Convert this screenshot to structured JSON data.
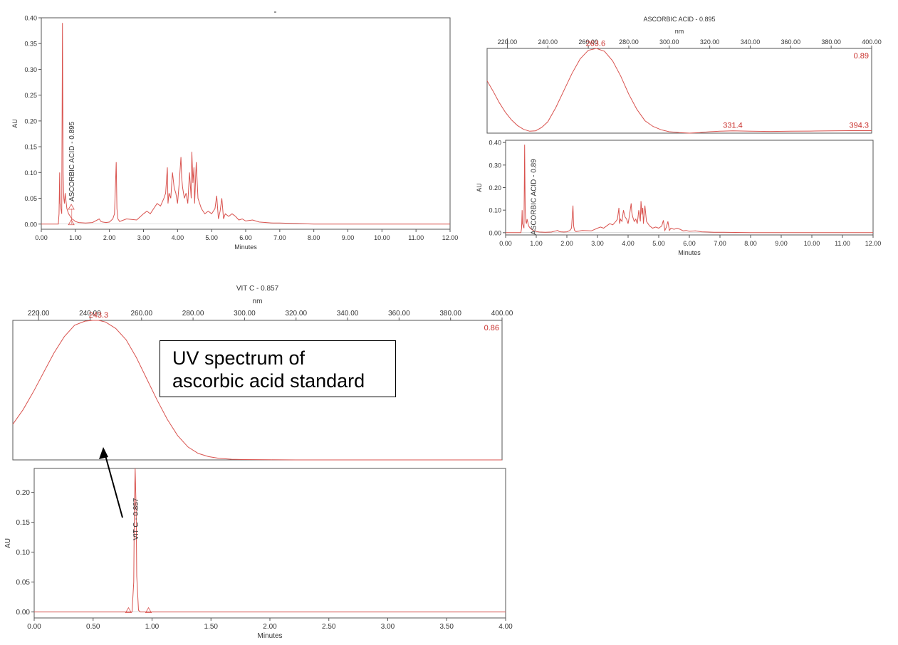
{
  "chart_data": [
    {
      "id": "chrom_top_left",
      "type": "line",
      "title": "",
      "xlabel": "Minutes",
      "ylabel": "AU",
      "xlim": [
        0,
        12
      ],
      "ylim": [
        -0.01,
        0.4
      ],
      "xticks": [
        "0.00",
        "1.00",
        "2.00",
        "3.00",
        "4.00",
        "5.00",
        "6.00",
        "7.00",
        "8.00",
        "9.00",
        "10.00",
        "11.00",
        "12.00"
      ],
      "yticks": [
        "0.00",
        "0.05",
        "0.10",
        "0.15",
        "0.20",
        "0.25",
        "0.30",
        "0.35",
        "0.40"
      ],
      "peak_label": "ASCORBIC ACID - 0.895",
      "series": [
        {
          "x": [
            0,
            0.5,
            0.52,
            0.54,
            0.55,
            0.6,
            0.62,
            0.64,
            0.66,
            0.68,
            0.7,
            0.75,
            0.8,
            0.85,
            0.9,
            0.95,
            1.0,
            1.1,
            1.3,
            1.5,
            1.7,
            1.75,
            1.8,
            1.9,
            2.0,
            2.1,
            2.15,
            2.2,
            2.22,
            2.25,
            2.3,
            2.5,
            2.8,
            3.0,
            3.1,
            3.2,
            3.3,
            3.4,
            3.5,
            3.6,
            3.65,
            3.7,
            3.72,
            3.75,
            3.8,
            3.85,
            3.9,
            3.95,
            4.0,
            4.05,
            4.1,
            4.12,
            4.15,
            4.2,
            4.25,
            4.3,
            4.35,
            4.4,
            4.42,
            4.45,
            4.48,
            4.5,
            4.55,
            4.6,
            4.7,
            4.8,
            4.9,
            5.0,
            5.1,
            5.15,
            5.2,
            5.25,
            5.3,
            5.35,
            5.4,
            5.5,
            5.6,
            5.7,
            5.8,
            5.9,
            6.0,
            6.2,
            6.4,
            6.6,
            6.8,
            7.0,
            7.5,
            8,
            9,
            10,
            11,
            12
          ],
          "y": [
            0,
            0,
            0.02,
            0.1,
            0.04,
            0.02,
            0.39,
            0.1,
            0.05,
            0.04,
            0.06,
            0.03,
            0.02,
            0.015,
            0.01,
            0.008,
            0.005,
            0.003,
            0.002,
            0.003,
            0.01,
            0.005,
            0.004,
            0.003,
            0.004,
            0.01,
            0.02,
            0.12,
            0.03,
            0.01,
            0.005,
            0.01,
            0.008,
            0.02,
            0.025,
            0.02,
            0.03,
            0.04,
            0.035,
            0.05,
            0.06,
            0.11,
            0.04,
            0.06,
            0.05,
            0.1,
            0.07,
            0.06,
            0.04,
            0.08,
            0.13,
            0.09,
            0.07,
            0.05,
            0.06,
            0.04,
            0.1,
            0.05,
            0.14,
            0.08,
            0.11,
            0.04,
            0.12,
            0.05,
            0.03,
            0.02,
            0.025,
            0.02,
            0.03,
            0.055,
            0.01,
            0.025,
            0.05,
            0.01,
            0.02,
            0.015,
            0.02,
            0.015,
            0.008,
            0.01,
            0.006,
            0.008,
            0.004,
            0.003,
            0.002,
            0.002,
            0.001,
            0,
            0,
            0,
            0,
            0
          ]
        }
      ],
      "markers": [
        {
          "x": 0.88,
          "y": 0.03
        },
        {
          "x": 0.88,
          "y": 0.0
        }
      ]
    },
    {
      "id": "spectrum_top_right",
      "type": "line",
      "title": "ASCORBIC ACID - 0.895",
      "xlabel": "nm",
      "xlim": [
        210,
        400
      ],
      "ylim": [
        0,
        0.89
      ],
      "xticks": [
        "220.00",
        "240.00",
        "260.00",
        "280.00",
        "300.00",
        "320.00",
        "340.00",
        "360.00",
        "380.00",
        "400.00"
      ],
      "max_label": "0.89",
      "peak_labels": [
        {
          "x": 263.6,
          "text": "263.6"
        },
        {
          "x": 331.4,
          "text": "331.4"
        },
        {
          "x": 394.3,
          "text": "394.3"
        }
      ],
      "series": [
        {
          "x": [
            210,
            213,
            216,
            219,
            222,
            225,
            228,
            231,
            234,
            237,
            240,
            244,
            248,
            252,
            256,
            260,
            264,
            268,
            272,
            276,
            280,
            284,
            288,
            292,
            296,
            300,
            305,
            310,
            315,
            320,
            325,
            331.4,
            340,
            350,
            360,
            370,
            380,
            390,
            394.3,
            400
          ],
          "y": [
            0.55,
            0.44,
            0.32,
            0.22,
            0.14,
            0.08,
            0.04,
            0.02,
            0.025,
            0.06,
            0.12,
            0.27,
            0.45,
            0.63,
            0.78,
            0.87,
            0.89,
            0.86,
            0.76,
            0.6,
            0.41,
            0.25,
            0.13,
            0.07,
            0.035,
            0.015,
            0.005,
            0.0,
            0.005,
            0.015,
            0.02,
            0.025,
            0.02,
            0.018,
            0.02,
            0.022,
            0.024,
            0.026,
            0.026,
            0.026
          ]
        }
      ]
    },
    {
      "id": "chrom_top_right",
      "type": "line",
      "xlabel": "Minutes",
      "ylabel": "AU",
      "xlim": [
        0,
        12
      ],
      "ylim": [
        -0.01,
        0.41
      ],
      "xticks": [
        "0.00",
        "1.00",
        "2.00",
        "3.00",
        "4.00",
        "5.00",
        "6.00",
        "7.00",
        "8.00",
        "9.00",
        "10.00",
        "11.00",
        "12.00"
      ],
      "yticks": [
        "0.00",
        "0.10",
        "0.20",
        "0.30",
        "0.40"
      ],
      "peak_label": "ASCORBIC ACID - 0.89",
      "series": [
        {
          "x": [
            0,
            0.5,
            0.52,
            0.54,
            0.55,
            0.6,
            0.62,
            0.64,
            0.66,
            0.68,
            0.7,
            0.75,
            0.8,
            0.85,
            0.9,
            0.95,
            1.0,
            1.1,
            1.3,
            1.5,
            1.7,
            1.75,
            1.8,
            1.9,
            2.0,
            2.1,
            2.15,
            2.2,
            2.22,
            2.25,
            2.3,
            2.5,
            2.8,
            3.0,
            3.1,
            3.2,
            3.3,
            3.4,
            3.5,
            3.6,
            3.65,
            3.7,
            3.72,
            3.75,
            3.8,
            3.85,
            3.9,
            3.95,
            4.0,
            4.05,
            4.1,
            4.12,
            4.15,
            4.2,
            4.25,
            4.3,
            4.35,
            4.4,
            4.42,
            4.45,
            4.48,
            4.5,
            4.55,
            4.6,
            4.7,
            4.8,
            4.9,
            5.0,
            5.1,
            5.15,
            5.2,
            5.25,
            5.3,
            5.35,
            5.4,
            5.5,
            5.6,
            5.7,
            5.8,
            5.9,
            6.0,
            6.2,
            6.4,
            6.6,
            6.8,
            7.0,
            7.5,
            8,
            9,
            10,
            11,
            12
          ],
          "y": [
            0,
            0,
            0.02,
            0.1,
            0.04,
            0.02,
            0.39,
            0.1,
            0.05,
            0.04,
            0.06,
            0.03,
            0.02,
            0.015,
            0.01,
            0.008,
            0.005,
            0.003,
            0.002,
            0.003,
            0.01,
            0.005,
            0.004,
            0.003,
            0.004,
            0.01,
            0.02,
            0.12,
            0.03,
            0.01,
            0.005,
            0.01,
            0.008,
            0.02,
            0.025,
            0.02,
            0.03,
            0.04,
            0.035,
            0.05,
            0.06,
            0.11,
            0.04,
            0.06,
            0.05,
            0.1,
            0.07,
            0.06,
            0.04,
            0.08,
            0.13,
            0.09,
            0.07,
            0.05,
            0.06,
            0.04,
            0.1,
            0.05,
            0.14,
            0.08,
            0.11,
            0.04,
            0.12,
            0.05,
            0.03,
            0.02,
            0.025,
            0.02,
            0.03,
            0.055,
            0.01,
            0.025,
            0.05,
            0.01,
            0.02,
            0.015,
            0.02,
            0.015,
            0.008,
            0.01,
            0.006,
            0.008,
            0.004,
            0.003,
            0.002,
            0.002,
            0.001,
            0,
            0,
            0,
            0,
            0
          ]
        }
      ]
    },
    {
      "id": "spectrum_bottom",
      "type": "line",
      "title": "VIT C - 0.857",
      "xlabel": "nm",
      "xlim": [
        210,
        400
      ],
      "ylim": [
        0,
        0.86
      ],
      "xticks": [
        "220.00",
        "240.00",
        "260.00",
        "280.00",
        "300.00",
        "320.00",
        "340.00",
        "360.00",
        "380.00",
        "400.00"
      ],
      "max_label": "0.86",
      "peak_labels": [
        {
          "x": 243.3,
          "text": "243.3"
        }
      ],
      "series": [
        {
          "x": [
            210,
            214,
            218,
            222,
            226,
            230,
            234,
            238,
            241,
            243.3,
            246,
            250,
            254,
            258,
            262,
            266,
            270,
            274,
            278,
            282,
            286,
            290,
            295,
            300,
            310,
            320,
            340,
            360,
            380,
            400
          ],
          "y": [
            0.22,
            0.31,
            0.42,
            0.54,
            0.66,
            0.76,
            0.83,
            0.855,
            0.86,
            0.86,
            0.85,
            0.81,
            0.74,
            0.63,
            0.5,
            0.37,
            0.25,
            0.15,
            0.08,
            0.04,
            0.02,
            0.01,
            0.004,
            0.002,
            0.001,
            0,
            0,
            0,
            0,
            0
          ]
        }
      ]
    },
    {
      "id": "chrom_bottom",
      "type": "line",
      "xlabel": "Minutes",
      "ylabel": "AU",
      "xlim": [
        0,
        4
      ],
      "ylim": [
        -0.01,
        0.24
      ],
      "xticks": [
        "0.00",
        "0.50",
        "1.00",
        "1.50",
        "2.00",
        "2.50",
        "3.00",
        "3.50",
        "4.00"
      ],
      "yticks": [
        "0.00",
        "0.05",
        "0.10",
        "0.15",
        "0.20"
      ],
      "peak_label": "VIT C - 0.857",
      "series": [
        {
          "x": [
            0,
            0.5,
            0.8,
            0.83,
            0.845,
            0.85,
            0.857,
            0.865,
            0.87,
            0.885,
            0.9,
            1.0,
            2,
            3,
            4
          ],
          "y": [
            0,
            0,
            0,
            0,
            0.05,
            0.18,
            0.24,
            0.17,
            0.06,
            0.003,
            0,
            0,
            0,
            0,
            0
          ]
        }
      ],
      "markers": [
        {
          "x": 0.8,
          "y": 0.0
        },
        {
          "x": 0.97,
          "y": 0.0
        }
      ]
    }
  ],
  "annotation": {
    "line1": "UV spectrum of",
    "line2": "ascorbic acid standard"
  },
  "colors": {
    "trace": "#d9534f",
    "label_red": "#c9302c",
    "axis": "#555555",
    "text": "#333333"
  }
}
